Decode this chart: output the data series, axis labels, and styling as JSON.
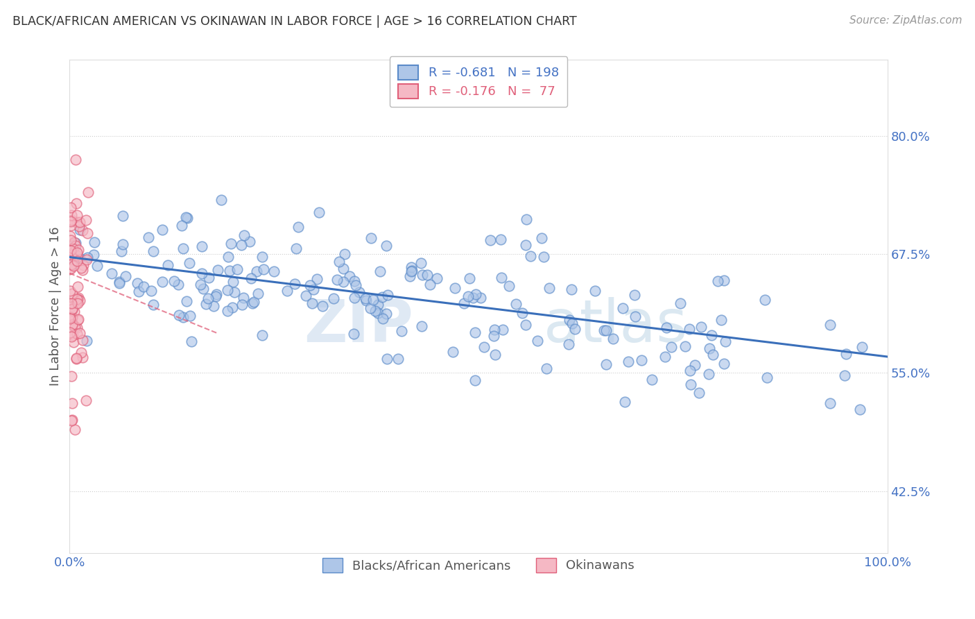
{
  "title": "BLACK/AFRICAN AMERICAN VS OKINAWAN IN LABOR FORCE | AGE > 16 CORRELATION CHART",
  "source": "Source: ZipAtlas.com",
  "ylabel": "In Labor Force | Age > 16",
  "xlim": [
    0.0,
    1.0
  ],
  "ylim": [
    0.36,
    0.88
  ],
  "yticks": [
    0.425,
    0.55,
    0.675,
    0.8
  ],
  "ytick_labels": [
    "42.5%",
    "55.0%",
    "67.5%",
    "80.0%"
  ],
  "xticks": [
    0.0,
    1.0
  ],
  "xtick_labels": [
    "0.0%",
    "100.0%"
  ],
  "blue_R": -0.681,
  "blue_N": 198,
  "pink_R": -0.176,
  "pink_N": 77,
  "blue_scatter_color": "#aec6e8",
  "blue_edge_color": "#5b8bc9",
  "blue_line_color": "#3a6fba",
  "pink_scatter_color": "#f5b8c4",
  "pink_edge_color": "#e0607a",
  "pink_line_color": "#e0607a",
  "watermark_zip": "ZIP",
  "watermark_atlas": "atlas",
  "background_color": "#ffffff",
  "legend_label_blue": "Blacks/African Americans",
  "legend_label_pink": "Okinawans",
  "title_color": "#333333",
  "axis_label_color": "#555555",
  "tick_color_blue": "#4472c4",
  "grid_color": "#cccccc",
  "blue_intercept": 0.672,
  "blue_slope": -0.105,
  "pink_intercept": 0.655,
  "pink_slope": -0.35,
  "seed_blue": 7,
  "seed_pink": 13
}
